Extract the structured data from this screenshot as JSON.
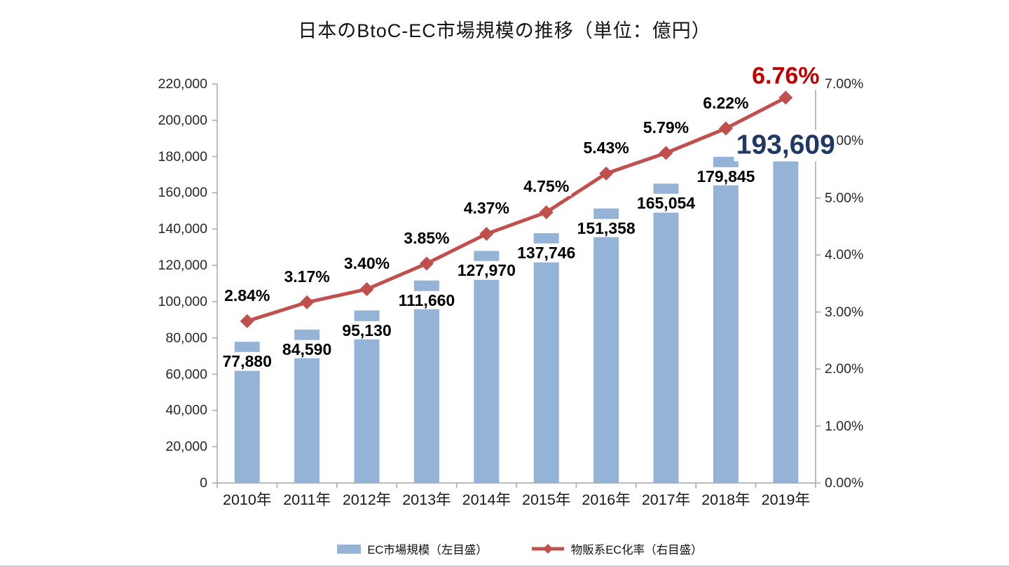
{
  "title": "日本のBtoC-EC市場規模の推移（単位：億円）",
  "chart_data": {
    "type": "combo-bar-line",
    "title": "日本のBtoC-EC市場規模の推移（単位：億円）",
    "categories": [
      "2010年",
      "2011年",
      "2012年",
      "2013年",
      "2014年",
      "2015年",
      "2016年",
      "2017年",
      "2018年",
      "2019年"
    ],
    "series": [
      {
        "name": "EC市場規模（左目盛）",
        "type": "bar",
        "axis": "left",
        "color": "#95B3D7",
        "values": [
          77880,
          84590,
          95130,
          111660,
          127970,
          137746,
          151358,
          165054,
          179845,
          193609
        ],
        "labels": [
          "77,880",
          "84,590",
          "95,130",
          "111,660",
          "127,970",
          "137,746",
          "151,358",
          "165,054",
          "179,845",
          "193,609"
        ]
      },
      {
        "name": "物販系EC化率（右目盛）",
        "type": "line",
        "axis": "right",
        "color": "#C0504D",
        "values": [
          2.84,
          3.17,
          3.4,
          3.85,
          4.37,
          4.75,
          5.43,
          5.79,
          6.22,
          6.76
        ],
        "labels": [
          "2.84%",
          "3.17%",
          "3.40%",
          "3.85%",
          "4.37%",
          "4.75%",
          "5.43%",
          "5.79%",
          "6.22%",
          "6.76%"
        ]
      }
    ],
    "left_axis": {
      "min": 0,
      "max": 220000,
      "step": 20000,
      "tick_labels": [
        "0",
        "20,000",
        "40,000",
        "60,000",
        "80,000",
        "100,000",
        "120,000",
        "140,000",
        "160,000",
        "180,000",
        "200,000",
        "220,000"
      ]
    },
    "right_axis": {
      "min": 0,
      "max": 7,
      "step": 1,
      "tick_labels": [
        "0.00%",
        "1.00%",
        "2.00%",
        "3.00%",
        "4.00%",
        "5.00%",
        "6.00%",
        "7.00%"
      ]
    },
    "highlight": {
      "last_bar_label": "193,609",
      "last_bar_label_color": "#1F3864",
      "last_line_label": "6.76%",
      "last_line_label_color": "#C00000"
    },
    "grid": false,
    "legend_position": "bottom",
    "axis_line_color": "#A6A6A6"
  },
  "legend": {
    "items": [
      {
        "label": "EC市場規模（左目盛）",
        "color": "#95B3D7",
        "marker": "bar"
      },
      {
        "label": "物販系EC化率（右目盛）",
        "color": "#C0504D",
        "marker": "line-diamond"
      }
    ]
  }
}
